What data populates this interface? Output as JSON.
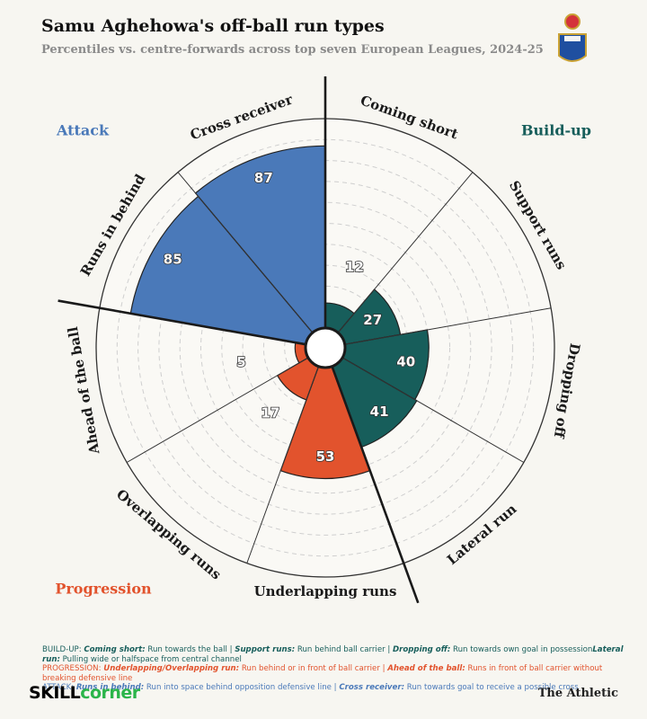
{
  "chart_data": {
    "type": "polar-bar",
    "title": "Samu Aghehowa's off-ball run types",
    "subtitle": "Percentiles vs. centre-forwards across top seven European Leagues, 2024-25",
    "rlim": [
      0,
      100
    ],
    "rticks": [
      10,
      20,
      30,
      40,
      50,
      60,
      70,
      80,
      90
    ],
    "grid": true,
    "series": [
      {
        "name": "Build-up",
        "color": "#175e5b",
        "categories": [
          "Coming short",
          "Support runs",
          "Dropping off",
          "Lateral run"
        ],
        "values": [
          12,
          27,
          40,
          41
        ]
      },
      {
        "name": "Progression",
        "color": "#e2532d",
        "categories": [
          "Underlapping runs",
          "Overlapping runs",
          "Ahead of the ball"
        ],
        "values": [
          53,
          17,
          5
        ]
      },
      {
        "name": "Attack",
        "color": "#4a79b9",
        "categories": [
          "Runs in behind",
          "Cross receiver"
        ],
        "values": [
          85,
          87
        ]
      }
    ]
  },
  "notes": [
    {
      "group": "BUILD-UP:",
      "color": "#175e5b",
      "items": [
        {
          "term": "Coming short:",
          "desc": " Run towards the ball | "
        },
        {
          "term": "Support runs:",
          "desc": " Run behind ball carrier | "
        },
        {
          "term": "Dropping off:",
          "desc": " Run towards own goal in possession"
        },
        {
          "term": "Lateral run:",
          "desc": " Pulling wide or halfspace from central channel"
        }
      ]
    },
    {
      "group": "PROGRESSION:",
      "color": "#e2532d",
      "items": [
        {
          "term": "Underlapping/Overlapping run:",
          "desc": " Run behind or in front of ball carrier | "
        },
        {
          "term": "Ahead of the ball:",
          "desc": " Runs in front of ball carrier without breaking defensive line"
        }
      ]
    },
    {
      "group": "ATTACK:",
      "color": "#4a79b9",
      "items": [
        {
          "term": "Runs in behind:",
          "desc": " Run into space behind opposition defensive line | "
        },
        {
          "term": "Cross receiver:",
          "desc": " Run towards goal to receive a possible cross"
        }
      ]
    }
  ],
  "footer": {
    "brand_left": [
      "SKILL",
      "corner"
    ],
    "brand_right": "The Athletic"
  }
}
